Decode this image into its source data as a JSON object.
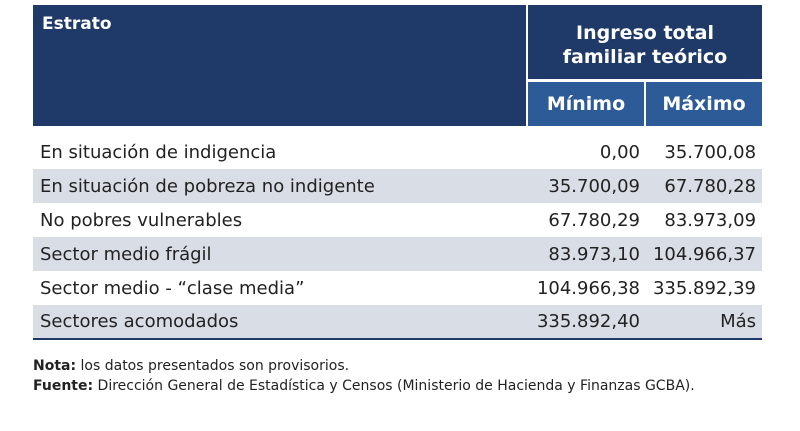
{
  "table": {
    "header": {
      "estrato": "Estrato",
      "ingreso_line1": "Ingreso total",
      "ingreso_line2": "familiar teórico",
      "minimo": "Mínimo",
      "maximo": "Máximo"
    },
    "rows": [
      {
        "estrato": "En situación de indigencia",
        "minimo": "0,00",
        "maximo": "35.700,08"
      },
      {
        "estrato": "En situación de pobreza no indigente",
        "minimo": "35.700,09",
        "maximo": "67.780,28"
      },
      {
        "estrato": "No pobres vulnerables",
        "minimo": "67.780,29",
        "maximo": "83.973,09"
      },
      {
        "estrato": "Sector medio frágil",
        "minimo": "83.973,10",
        "maximo": "104.966,37"
      },
      {
        "estrato": "Sector medio - “clase media”",
        "minimo": "104.966,38",
        "maximo": "335.892,39"
      },
      {
        "estrato": "Sectores acomodados",
        "minimo": "335.892,40",
        "maximo": "Más"
      }
    ]
  },
  "notes": {
    "nota_label": "Nota:",
    "nota_text": " los datos presentados son provisorios.",
    "fuente_label": "Fuente:",
    "fuente_text": " Dirección General de Estadística y Censos (Ministerio de Hacienda y Finanzas GCBA)."
  },
  "colors": {
    "header_dark": "#1f3a68",
    "header_sub": "#2c5b97",
    "row_shade": "#d9dde5"
  }
}
